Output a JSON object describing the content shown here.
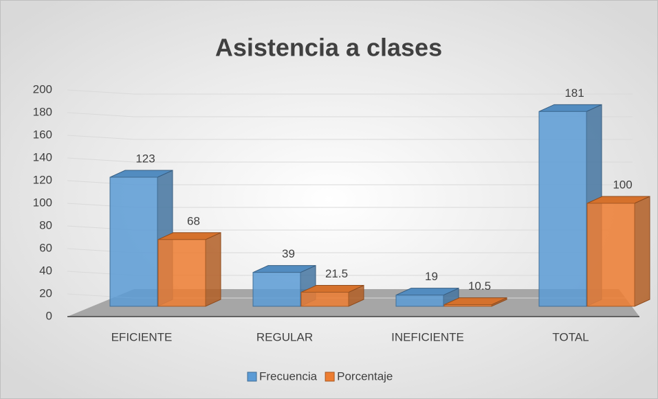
{
  "chart_data": {
    "type": "bar",
    "title": "Asistencia a clases",
    "categories": [
      "EFICIENTE",
      "REGULAR",
      "INEFICIENTE",
      "TOTAL"
    ],
    "series": [
      {
        "name": "Frecuencia",
        "color": "#5b9bd5",
        "values": [
          123,
          39,
          19,
          181
        ]
      },
      {
        "name": "Porcentaje",
        "color": "#ed7d31",
        "values": [
          68,
          21.5,
          10.5,
          100
        ]
      }
    ],
    "ylim": [
      0,
      200
    ],
    "yticks": [
      0,
      20,
      40,
      60,
      80,
      100,
      120,
      140,
      160,
      180,
      200
    ],
    "grid": true,
    "legend": "bottom"
  }
}
